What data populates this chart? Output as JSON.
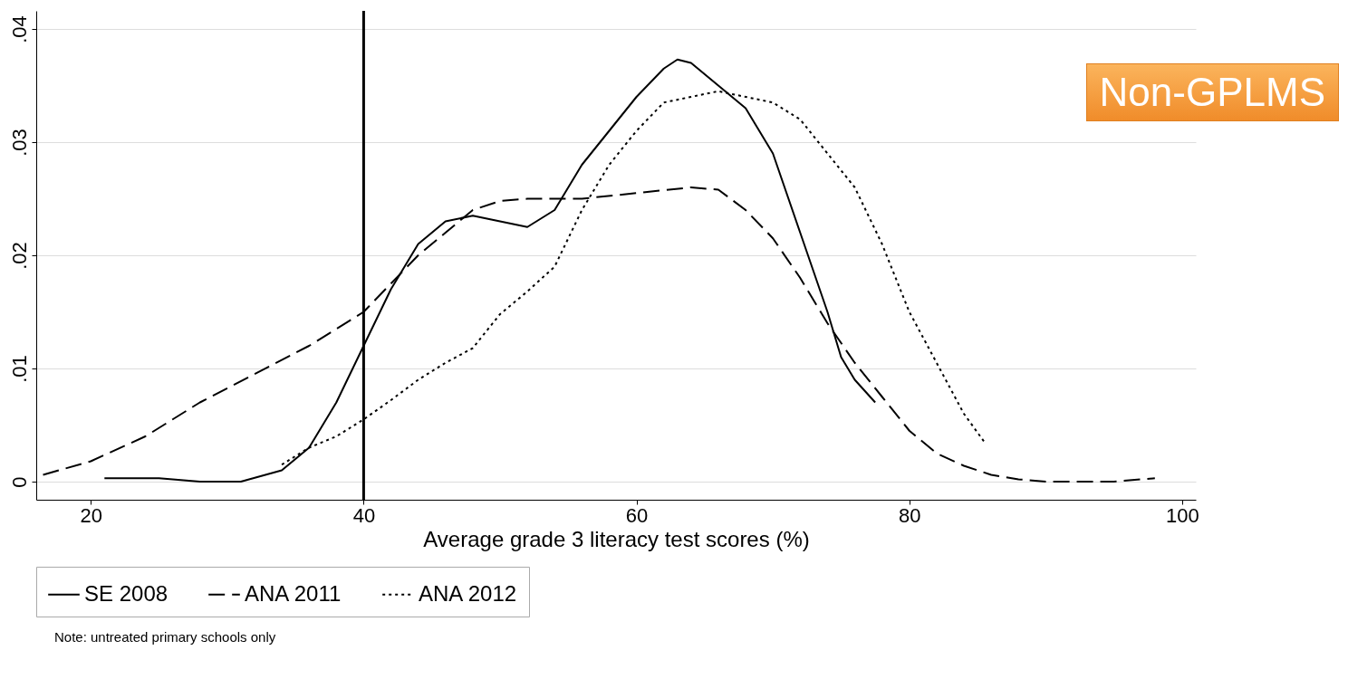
{
  "chart_data": {
    "type": "line",
    "xlabel": "Average grade 3 literacy test scores (%)",
    "xlim": [
      16,
      101
    ],
    "xticks": [
      20,
      40,
      60,
      80,
      100
    ],
    "ylim": [
      -0.0016,
      0.0416
    ],
    "yticks": [
      {
        "value": 0,
        "label": "0"
      },
      {
        "value": 0.01,
        "label": ".01"
      },
      {
        "value": 0.02,
        "label": ".02"
      },
      {
        "value": 0.03,
        "label": ".03"
      },
      {
        "value": 0.04,
        "label": ".04"
      }
    ],
    "grid": "y",
    "legend": "bottom",
    "ref_lines": [
      {
        "axis": "x",
        "value": 40,
        "color": "#000000"
      }
    ],
    "annotations": [
      "Non-GPLMS",
      "Note: untreated primary schools only"
    ],
    "series": [
      {
        "name": "SE 2008",
        "color": "#000000",
        "line_style": "solid",
        "x": [
          21,
          25,
          28,
          31,
          34,
          36,
          38,
          40,
          42,
          44,
          46,
          48,
          50,
          52,
          54,
          56,
          58,
          60,
          62,
          63,
          64,
          66,
          68,
          70,
          72,
          74,
          75,
          76,
          77.5
        ],
        "values": [
          0.0003,
          0.0003,
          0,
          0,
          0.001,
          0.003,
          0.007,
          0.012,
          0.017,
          0.021,
          0.023,
          0.0235,
          0.023,
          0.0225,
          0.024,
          0.028,
          0.031,
          0.034,
          0.0365,
          0.0373,
          0.037,
          0.035,
          0.033,
          0.029,
          0.022,
          0.015,
          0.011,
          0.009,
          0.007
        ]
      },
      {
        "name": "ANA 2011",
        "color": "#000000",
        "line_style": "dashed",
        "x": [
          16.5,
          20,
          24,
          28,
          32,
          36,
          40,
          42,
          44,
          46,
          48,
          50,
          52,
          56,
          60,
          64,
          66,
          68,
          70,
          72,
          74,
          76,
          78,
          80,
          82,
          84,
          86,
          88,
          90,
          95,
          98
        ],
        "values": [
          0.0006,
          0.0018,
          0.004,
          0.007,
          0.0095,
          0.012,
          0.015,
          0.0175,
          0.02,
          0.022,
          0.024,
          0.0248,
          0.025,
          0.025,
          0.0255,
          0.026,
          0.0258,
          0.024,
          0.0215,
          0.018,
          0.014,
          0.0105,
          0.0075,
          0.0045,
          0.0025,
          0.0014,
          0.0006,
          0.0002,
          0,
          0,
          0.0003
        ]
      },
      {
        "name": "ANA 2012",
        "color": "#000000",
        "line_style": "dotted",
        "x": [
          34,
          36,
          38,
          40,
          42,
          44,
          46,
          48,
          50,
          52,
          54,
          56,
          58,
          60,
          62,
          64,
          66,
          68,
          70,
          72,
          74,
          76,
          78,
          80,
          82,
          84,
          85.5
        ],
        "values": [
          0.0015,
          0.003,
          0.004,
          0.0055,
          0.0072,
          0.009,
          0.0105,
          0.0118,
          0.0148,
          0.0168,
          0.019,
          0.024,
          0.028,
          0.031,
          0.0335,
          0.034,
          0.0345,
          0.034,
          0.0335,
          0.032,
          0.029,
          0.026,
          0.021,
          0.015,
          0.0105,
          0.006,
          0.0035
        ]
      }
    ]
  }
}
